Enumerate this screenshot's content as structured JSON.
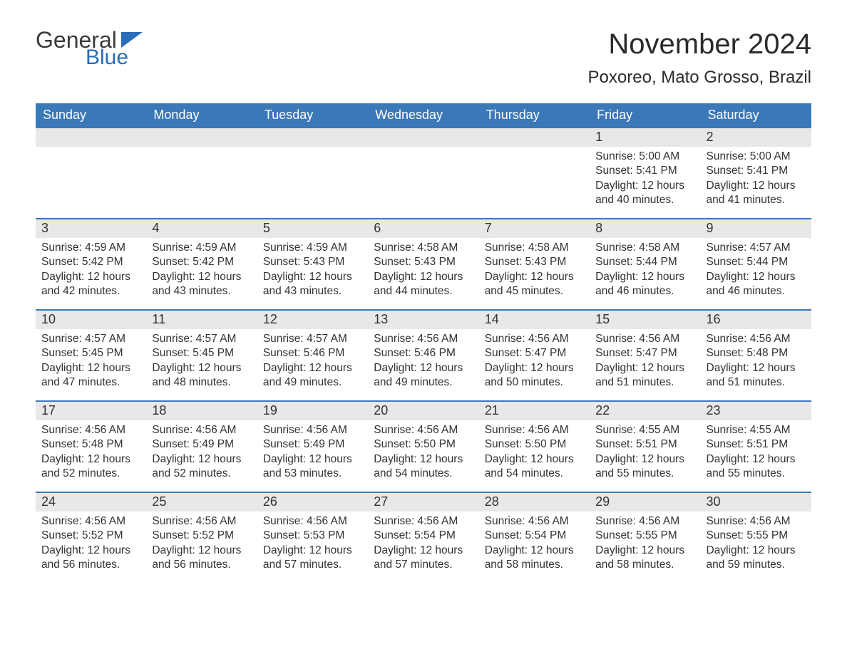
{
  "logo": {
    "text1": "General",
    "text2": "Blue"
  },
  "title": "November 2024",
  "location": "Poxoreo, Mato Grosso, Brazil",
  "colors": {
    "header_bg": "#3b78b8",
    "header_text": "#ffffff",
    "daynum_bg": "#e8e8e8",
    "week_border": "#3b78b8",
    "text": "#333333",
    "logo_blue": "#2a6db8"
  },
  "day_names": [
    "Sunday",
    "Monday",
    "Tuesday",
    "Wednesday",
    "Thursday",
    "Friday",
    "Saturday"
  ],
  "weeks": [
    [
      {
        "day": "",
        "sunrise": "",
        "sunset": "",
        "daylight": ""
      },
      {
        "day": "",
        "sunrise": "",
        "sunset": "",
        "daylight": ""
      },
      {
        "day": "",
        "sunrise": "",
        "sunset": "",
        "daylight": ""
      },
      {
        "day": "",
        "sunrise": "",
        "sunset": "",
        "daylight": ""
      },
      {
        "day": "",
        "sunrise": "",
        "sunset": "",
        "daylight": ""
      },
      {
        "day": "1",
        "sunrise": "Sunrise: 5:00 AM",
        "sunset": "Sunset: 5:41 PM",
        "daylight": "Daylight: 12 hours and 40 minutes."
      },
      {
        "day": "2",
        "sunrise": "Sunrise: 5:00 AM",
        "sunset": "Sunset: 5:41 PM",
        "daylight": "Daylight: 12 hours and 41 minutes."
      }
    ],
    [
      {
        "day": "3",
        "sunrise": "Sunrise: 4:59 AM",
        "sunset": "Sunset: 5:42 PM",
        "daylight": "Daylight: 12 hours and 42 minutes."
      },
      {
        "day": "4",
        "sunrise": "Sunrise: 4:59 AM",
        "sunset": "Sunset: 5:42 PM",
        "daylight": "Daylight: 12 hours and 43 minutes."
      },
      {
        "day": "5",
        "sunrise": "Sunrise: 4:59 AM",
        "sunset": "Sunset: 5:43 PM",
        "daylight": "Daylight: 12 hours and 43 minutes."
      },
      {
        "day": "6",
        "sunrise": "Sunrise: 4:58 AM",
        "sunset": "Sunset: 5:43 PM",
        "daylight": "Daylight: 12 hours and 44 minutes."
      },
      {
        "day": "7",
        "sunrise": "Sunrise: 4:58 AM",
        "sunset": "Sunset: 5:43 PM",
        "daylight": "Daylight: 12 hours and 45 minutes."
      },
      {
        "day": "8",
        "sunrise": "Sunrise: 4:58 AM",
        "sunset": "Sunset: 5:44 PM",
        "daylight": "Daylight: 12 hours and 46 minutes."
      },
      {
        "day": "9",
        "sunrise": "Sunrise: 4:57 AM",
        "sunset": "Sunset: 5:44 PM",
        "daylight": "Daylight: 12 hours and 46 minutes."
      }
    ],
    [
      {
        "day": "10",
        "sunrise": "Sunrise: 4:57 AM",
        "sunset": "Sunset: 5:45 PM",
        "daylight": "Daylight: 12 hours and 47 minutes."
      },
      {
        "day": "11",
        "sunrise": "Sunrise: 4:57 AM",
        "sunset": "Sunset: 5:45 PM",
        "daylight": "Daylight: 12 hours and 48 minutes."
      },
      {
        "day": "12",
        "sunrise": "Sunrise: 4:57 AM",
        "sunset": "Sunset: 5:46 PM",
        "daylight": "Daylight: 12 hours and 49 minutes."
      },
      {
        "day": "13",
        "sunrise": "Sunrise: 4:56 AM",
        "sunset": "Sunset: 5:46 PM",
        "daylight": "Daylight: 12 hours and 49 minutes."
      },
      {
        "day": "14",
        "sunrise": "Sunrise: 4:56 AM",
        "sunset": "Sunset: 5:47 PM",
        "daylight": "Daylight: 12 hours and 50 minutes."
      },
      {
        "day": "15",
        "sunrise": "Sunrise: 4:56 AM",
        "sunset": "Sunset: 5:47 PM",
        "daylight": "Daylight: 12 hours and 51 minutes."
      },
      {
        "day": "16",
        "sunrise": "Sunrise: 4:56 AM",
        "sunset": "Sunset: 5:48 PM",
        "daylight": "Daylight: 12 hours and 51 minutes."
      }
    ],
    [
      {
        "day": "17",
        "sunrise": "Sunrise: 4:56 AM",
        "sunset": "Sunset: 5:48 PM",
        "daylight": "Daylight: 12 hours and 52 minutes."
      },
      {
        "day": "18",
        "sunrise": "Sunrise: 4:56 AM",
        "sunset": "Sunset: 5:49 PM",
        "daylight": "Daylight: 12 hours and 52 minutes."
      },
      {
        "day": "19",
        "sunrise": "Sunrise: 4:56 AM",
        "sunset": "Sunset: 5:49 PM",
        "daylight": "Daylight: 12 hours and 53 minutes."
      },
      {
        "day": "20",
        "sunrise": "Sunrise: 4:56 AM",
        "sunset": "Sunset: 5:50 PM",
        "daylight": "Daylight: 12 hours and 54 minutes."
      },
      {
        "day": "21",
        "sunrise": "Sunrise: 4:56 AM",
        "sunset": "Sunset: 5:50 PM",
        "daylight": "Daylight: 12 hours and 54 minutes."
      },
      {
        "day": "22",
        "sunrise": "Sunrise: 4:55 AM",
        "sunset": "Sunset: 5:51 PM",
        "daylight": "Daylight: 12 hours and 55 minutes."
      },
      {
        "day": "23",
        "sunrise": "Sunrise: 4:55 AM",
        "sunset": "Sunset: 5:51 PM",
        "daylight": "Daylight: 12 hours and 55 minutes."
      }
    ],
    [
      {
        "day": "24",
        "sunrise": "Sunrise: 4:56 AM",
        "sunset": "Sunset: 5:52 PM",
        "daylight": "Daylight: 12 hours and 56 minutes."
      },
      {
        "day": "25",
        "sunrise": "Sunrise: 4:56 AM",
        "sunset": "Sunset: 5:52 PM",
        "daylight": "Daylight: 12 hours and 56 minutes."
      },
      {
        "day": "26",
        "sunrise": "Sunrise: 4:56 AM",
        "sunset": "Sunset: 5:53 PM",
        "daylight": "Daylight: 12 hours and 57 minutes."
      },
      {
        "day": "27",
        "sunrise": "Sunrise: 4:56 AM",
        "sunset": "Sunset: 5:54 PM",
        "daylight": "Daylight: 12 hours and 57 minutes."
      },
      {
        "day": "28",
        "sunrise": "Sunrise: 4:56 AM",
        "sunset": "Sunset: 5:54 PM",
        "daylight": "Daylight: 12 hours and 58 minutes."
      },
      {
        "day": "29",
        "sunrise": "Sunrise: 4:56 AM",
        "sunset": "Sunset: 5:55 PM",
        "daylight": "Daylight: 12 hours and 58 minutes."
      },
      {
        "day": "30",
        "sunrise": "Sunrise: 4:56 AM",
        "sunset": "Sunset: 5:55 PM",
        "daylight": "Daylight: 12 hours and 59 minutes."
      }
    ]
  ]
}
